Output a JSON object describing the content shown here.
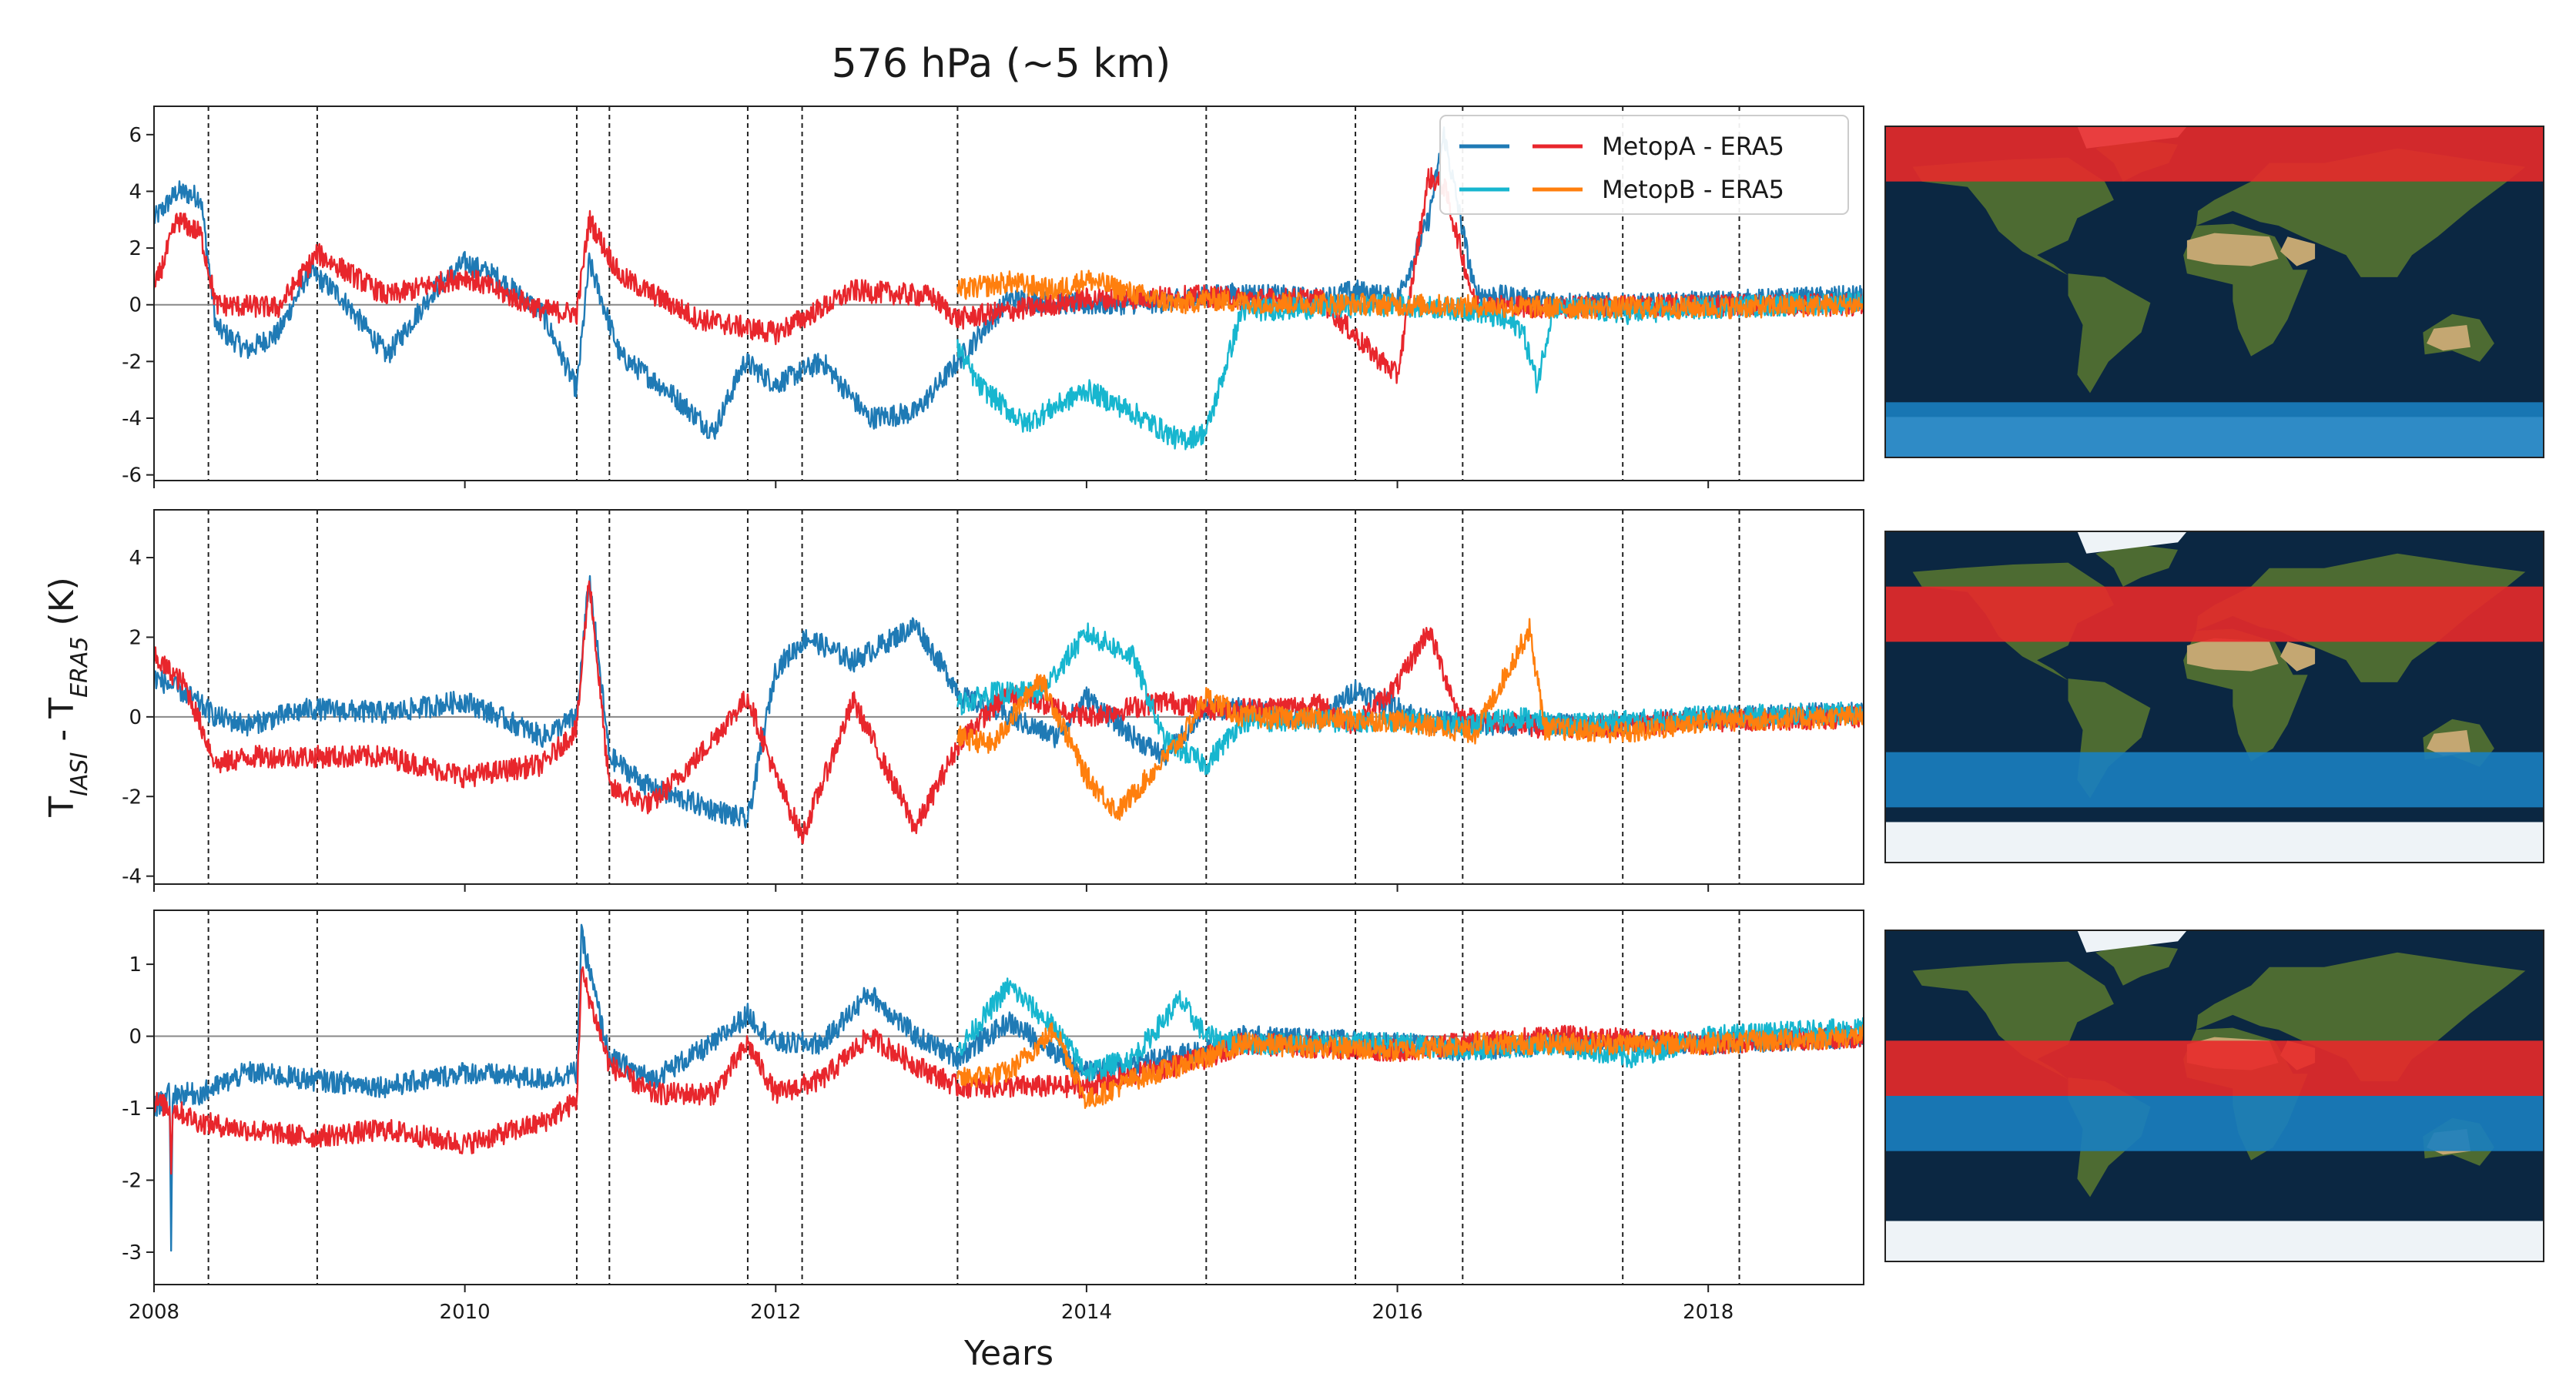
{
  "chart_data": {
    "type": "line",
    "title": "576 hPa (~5 km)",
    "xlabel": "Years",
    "ylabel": {
      "main": "T",
      "sub1": "IASI",
      "mid": " - T",
      "sub2": "ERA5",
      "unit": " (K)"
    },
    "xlim": [
      2008,
      2019
    ],
    "xticks": [
      2008,
      2010,
      2012,
      2014,
      2016,
      2018
    ],
    "xtick_labels": [
      "2008",
      "2010",
      "2012",
      "2014",
      "2016",
      "2018"
    ],
    "event_lines": [
      2008.35,
      2009.05,
      2010.72,
      2010.93,
      2011.82,
      2012.17,
      2013.17,
      2014.77,
      2015.73,
      2016.42,
      2017.45,
      2018.2
    ],
    "legend": {
      "position": "top-right",
      "entries": [
        "MetopA - ERA5",
        "MetopB - ERA5"
      ]
    },
    "colors": {
      "metopA_day": "#1f7ab5",
      "metopA_night": "#e8262c",
      "metopB_day": "#17b6cf",
      "metopB_night": "#ff7f0e",
      "zero_line": "#888888",
      "map_ocean": "#0b2742",
      "map_land": "#4d6b32",
      "map_desert": "#c4a772",
      "map_ice": "#eef3f7",
      "band_red": "#e82a2a",
      "band_blue": "#1a7fc0"
    },
    "panels": [
      {
        "ylim": [
          -6.2,
          7
        ],
        "yticks": [
          -6,
          -4,
          -2,
          0,
          2,
          4,
          6
        ],
        "ytick_labels": [
          "-6",
          "-4",
          "-2",
          "0",
          "2",
          "4",
          "6"
        ],
        "region_bands": [
          {
            "color": "red",
            "lat_top": 90,
            "lat_bottom": 60
          },
          {
            "color": "blue",
            "lat_top": -60,
            "lat_bottom": -90
          }
        ],
        "series": [
          {
            "legend_label": "MetopA - ERA5",
            "color_key": "metopA_day",
            "x": [
              2008.0,
              2008.15,
              2008.3,
              2008.4,
              2008.6,
              2008.8,
              2009.0,
              2009.2,
              2009.5,
              2009.8,
              2010.0,
              2010.2,
              2010.5,
              2010.72,
              2010.8,
              2011.0,
              2011.3,
              2011.6,
              2011.8,
              2012.0,
              2012.3,
              2012.6,
              2012.9,
              2013.17,
              2013.5,
              2014.0,
              2014.5,
              2014.77,
              2015.0,
              2015.5,
              2015.73,
              2016.0,
              2016.2,
              2016.3,
              2016.5,
              2017.0,
              2017.5,
              2018.0,
              2018.5,
              2019.0
            ],
            "y": [
              3.0,
              4.0,
              3.8,
              -0.8,
              -1.6,
              -1.0,
              1.2,
              0.3,
              -1.8,
              0.5,
              1.5,
              1.0,
              -0.3,
              -3.0,
              1.5,
              -1.8,
              -3.0,
              -4.5,
              -2.0,
              -2.8,
              -2.0,
              -4.0,
              -3.8,
              -2.0,
              0.2,
              0.0,
              0.1,
              0.3,
              0.4,
              0.2,
              0.5,
              0.2,
              3.0,
              6.0,
              0.4,
              0.1,
              0.0,
              0.1,
              0.2,
              0.3
            ]
          },
          {
            "legend_label": "",
            "color_key": "metopA_night",
            "x": [
              2008.0,
              2008.15,
              2008.3,
              2008.4,
              2008.8,
              2009.05,
              2009.5,
              2010.0,
              2010.5,
              2010.72,
              2010.8,
              2011.0,
              2011.5,
              2012.0,
              2012.5,
              2013.0,
              2013.17,
              2014.0,
              2014.77,
              2015.0,
              2015.5,
              2015.8,
              2016.0,
              2016.2,
              2016.3,
              2016.5,
              2017.0,
              2018.0,
              2019.0
            ],
            "y": [
              0.5,
              3.0,
              2.5,
              0.0,
              -0.1,
              1.8,
              0.3,
              1.0,
              -0.2,
              -0.3,
              3.0,
              1.0,
              -0.5,
              -1.0,
              0.5,
              0.3,
              -0.5,
              0.2,
              0.3,
              0.2,
              0.2,
              -1.5,
              -2.5,
              4.5,
              4.2,
              0.0,
              -0.1,
              0.0,
              0.0
            ]
          },
          {
            "legend_label": "MetopB - ERA5",
            "color_key": "metopB_day",
            "x": [
              2013.17,
              2013.3,
              2013.6,
              2014.0,
              2014.3,
              2014.6,
              2014.77,
              2015.0,
              2015.5,
              2016.0,
              2016.5,
              2016.8,
              2016.9,
              2017.0,
              2017.5,
              2018.0,
              2018.5,
              2019.0
            ],
            "y": [
              -1.5,
              -2.8,
              -4.2,
              -3.0,
              -3.8,
              -4.8,
              -4.5,
              -0.2,
              -0.1,
              0.0,
              -0.2,
              -0.8,
              -2.8,
              -0.1,
              -0.3,
              -0.1,
              0.0,
              0.1
            ]
          },
          {
            "legend_label": "",
            "color_key": "metopB_night",
            "x": [
              2013.17,
              2013.5,
              2013.8,
              2014.0,
              2014.3,
              2014.6,
              2014.77,
              2015.0,
              2016.0,
              2017.0,
              2018.0,
              2019.0
            ],
            "y": [
              0.5,
              0.8,
              0.5,
              0.9,
              0.4,
              0.0,
              0.2,
              0.1,
              0.0,
              -0.1,
              -0.1,
              0.0
            ]
          }
        ]
      },
      {
        "ylim": [
          -4.2,
          5.2
        ],
        "yticks": [
          -4,
          -2,
          0,
          2,
          4
        ],
        "ytick_labels": [
          "-4",
          "-2",
          "0",
          "2",
          "4"
        ],
        "region_bands": [
          {
            "color": "red",
            "lat_top": 60,
            "lat_bottom": 30
          },
          {
            "color": "blue",
            "lat_top": -30,
            "lat_bottom": -60
          }
        ],
        "series": [
          {
            "legend_label": "MetopA - ERA5",
            "color_key": "metopA_day",
            "x": [
              2008.0,
              2008.2,
              2008.4,
              2008.6,
              2009.0,
              2009.5,
              2010.0,
              2010.5,
              2010.72,
              2010.8,
              2010.93,
              2011.2,
              2011.5,
              2011.82,
              2012.0,
              2012.2,
              2012.5,
              2012.9,
              2013.2,
              2013.5,
              2013.8,
              2014.0,
              2014.3,
              2014.5,
              2014.77,
              2015.0,
              2015.5,
              2015.73,
              2015.9,
              2016.2,
              2016.5,
              2017.0,
              2017.5,
              2018.0,
              2019.0
            ],
            "y": [
              1.0,
              0.6,
              0.0,
              -0.2,
              0.2,
              0.1,
              0.4,
              -0.5,
              0.0,
              3.5,
              -1.0,
              -1.8,
              -2.2,
              -2.6,
              1.2,
              2.0,
              1.4,
              2.3,
              0.5,
              0.0,
              -0.5,
              0.5,
              -0.5,
              -1.0,
              0.2,
              0.2,
              -0.1,
              0.7,
              0.4,
              -0.1,
              -0.2,
              -0.2,
              -0.2,
              0.0,
              0.1
            ]
          },
          {
            "legend_label": "",
            "color_key": "metopA_night",
            "x": [
              2008.0,
              2008.2,
              2008.4,
              2008.6,
              2009.0,
              2009.5,
              2010.0,
              2010.5,
              2010.72,
              2010.8,
              2010.93,
              2011.2,
              2011.5,
              2011.82,
              2012.0,
              2012.17,
              2012.5,
              2012.9,
              2013.2,
              2013.5,
              2014.0,
              2014.5,
              2014.77,
              2015.0,
              2015.5,
              2015.73,
              2016.0,
              2016.2,
              2016.4,
              2017.0,
              2018.0,
              2019.0
            ],
            "y": [
              1.5,
              0.8,
              -1.2,
              -1.0,
              -1.0,
              -1.0,
              -1.5,
              -1.2,
              -0.3,
              3.5,
              -1.8,
              -2.2,
              -1.0,
              0.5,
              -1.5,
              -3.0,
              0.4,
              -2.8,
              -0.5,
              0.6,
              0.0,
              0.4,
              0.2,
              0.2,
              0.3,
              -0.2,
              0.8,
              2.2,
              0.0,
              -0.3,
              -0.1,
              0.0
            ]
          },
          {
            "legend_label": "MetopB - ERA5",
            "color_key": "metopB_day",
            "x": [
              2013.17,
              2013.4,
              2013.7,
              2014.0,
              2014.3,
              2014.5,
              2014.77,
              2015.0,
              2015.5,
              2016.0,
              2016.5,
              2016.8,
              2017.0,
              2017.5,
              2018.0,
              2019.0
            ],
            "y": [
              0.3,
              0.6,
              0.6,
              2.1,
              1.5,
              -0.6,
              -1.2,
              -0.1,
              -0.1,
              -0.1,
              -0.2,
              0.0,
              -0.2,
              -0.1,
              0.0,
              0.1
            ]
          },
          {
            "legend_label": "",
            "color_key": "metopB_night",
            "x": [
              2013.17,
              2013.4,
              2013.7,
              2014.0,
              2014.2,
              2014.4,
              2014.6,
              2014.77,
              2015.0,
              2016.0,
              2016.5,
              2016.85,
              2016.95,
              2017.0,
              2017.5,
              2018.0,
              2019.0
            ],
            "y": [
              -0.5,
              -0.7,
              1.0,
              -1.5,
              -2.4,
              -1.5,
              -0.6,
              0.5,
              0.0,
              -0.1,
              -0.4,
              2.2,
              -0.3,
              -0.3,
              -0.4,
              -0.1,
              0.0
            ]
          }
        ]
      },
      {
        "ylim": [
          -3.45,
          1.75
        ],
        "yticks": [
          -3,
          -2,
          -1,
          0,
          1
        ],
        "ytick_labels": [
          "-3",
          "-2",
          "-1",
          "0",
          "1"
        ],
        "region_bands": [
          {
            "color": "red",
            "lat_top": 30,
            "lat_bottom": 0
          },
          {
            "color": "blue",
            "lat_top": 0,
            "lat_bottom": -30
          }
        ],
        "series": [
          {
            "legend_label": "MetopA - ERA5",
            "color_key": "metopA_day",
            "x": [
              2008.0,
              2008.1,
              2008.11,
              2008.12,
              2008.3,
              2008.6,
              2009.0,
              2009.5,
              2010.0,
              2010.5,
              2010.72,
              2010.75,
              2010.93,
              2011.2,
              2011.6,
              2011.82,
              2012.0,
              2012.3,
              2012.6,
              2012.9,
              2013.17,
              2013.5,
              2014.0,
              2014.5,
              2014.77,
              2015.0,
              2016.0,
              2016.42,
              2017.0,
              2018.0,
              2019.0
            ],
            "y": [
              -1.0,
              -0.8,
              -3.1,
              -0.8,
              -0.8,
              -0.5,
              -0.6,
              -0.7,
              -0.5,
              -0.6,
              -0.5,
              1.4,
              -0.3,
              -0.6,
              -0.1,
              0.3,
              -0.1,
              -0.1,
              0.6,
              0.0,
              -0.3,
              0.2,
              -0.5,
              -0.3,
              -0.2,
              0.0,
              -0.1,
              -0.2,
              -0.1,
              -0.1,
              0.0
            ]
          },
          {
            "legend_label": "",
            "color_key": "metopA_night",
            "x": [
              2008.0,
              2008.1,
              2008.11,
              2008.12,
              2008.3,
              2008.6,
              2009.0,
              2009.5,
              2010.0,
              2010.5,
              2010.72,
              2010.75,
              2010.93,
              2011.2,
              2011.6,
              2011.82,
              2012.0,
              2012.3,
              2012.6,
              2012.9,
              2013.17,
              2014.0,
              2014.77,
              2015.0,
              2016.0,
              2016.42,
              2017.0,
              2018.0,
              2019.0
            ],
            "y": [
              -0.9,
              -1.0,
              -1.8,
              -1.0,
              -1.2,
              -1.3,
              -1.4,
              -1.3,
              -1.5,
              -1.2,
              -0.9,
              0.9,
              -0.4,
              -0.8,
              -0.8,
              -0.1,
              -0.8,
              -0.6,
              0.0,
              -0.4,
              -0.7,
              -0.7,
              -0.3,
              -0.1,
              -0.2,
              -0.1,
              0.0,
              -0.1,
              0.0
            ]
          },
          {
            "legend_label": "MetopB - ERA5",
            "color_key": "metopB_day",
            "x": [
              2013.17,
              2013.5,
              2013.8,
              2014.0,
              2014.3,
              2014.6,
              2014.77,
              2015.0,
              2016.0,
              2016.5,
              2017.0,
              2017.5,
              2018.0,
              2019.0
            ],
            "y": [
              -0.2,
              0.7,
              0.1,
              -0.5,
              -0.3,
              0.5,
              0.0,
              -0.1,
              -0.1,
              -0.2,
              -0.1,
              -0.3,
              0.0,
              0.1
            ]
          },
          {
            "legend_label": "",
            "color_key": "metopB_night",
            "x": [
              2013.17,
              2013.5,
              2013.8,
              2014.0,
              2014.3,
              2014.77,
              2015.0,
              2016.0,
              2016.5,
              2017.0,
              2018.0,
              2019.0
            ],
            "y": [
              -0.6,
              -0.5,
              0.1,
              -0.9,
              -0.6,
              -0.3,
              -0.1,
              -0.2,
              -0.1,
              -0.1,
              -0.1,
              0.0
            ]
          }
        ]
      }
    ]
  }
}
